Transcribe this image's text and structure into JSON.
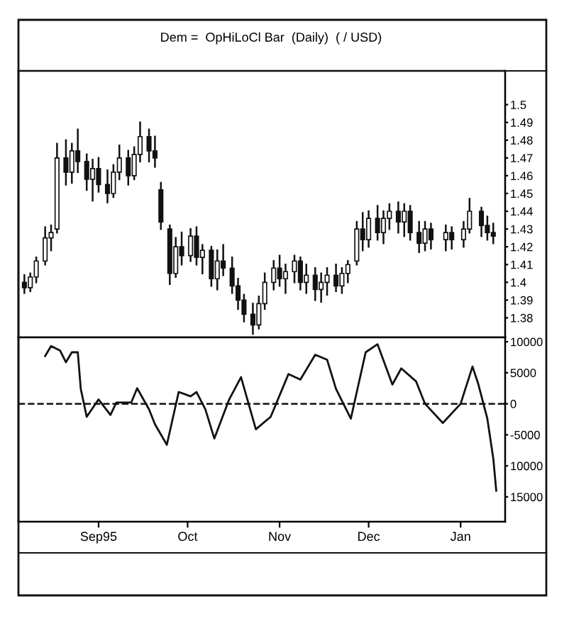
{
  "chart_data": [
    {
      "type": "candlestick",
      "title": "Dem =  OpHiLoCl Bar  (Daily)  ( / USD)",
      "color": "#111111",
      "x": [
        "1995-08-07",
        "1995-08-09",
        "1995-08-11",
        "1995-08-14",
        "1995-08-16",
        "1995-08-18",
        "1995-08-21",
        "1995-08-23",
        "1995-08-25",
        "1995-08-28",
        "1995-08-30",
        "1995-09-01",
        "1995-09-04",
        "1995-09-06",
        "1995-09-08",
        "1995-09-11",
        "1995-09-13",
        "1995-09-15",
        "1995-09-18",
        "1995-09-20",
        "1995-09-22",
        "1995-09-25",
        "1995-09-27",
        "1995-09-29",
        "1995-10-02",
        "1995-10-04",
        "1995-10-06",
        "1995-10-09",
        "1995-10-11",
        "1995-10-13",
        "1995-10-16",
        "1995-10-18",
        "1995-10-20",
        "1995-10-23",
        "1995-10-25",
        "1995-10-27",
        "1995-10-30",
        "1995-11-01",
        "1995-11-03",
        "1995-11-06",
        "1995-11-08",
        "1995-11-10",
        "1995-11-13",
        "1995-11-15",
        "1995-11-17",
        "1995-11-20",
        "1995-11-22",
        "1995-11-24",
        "1995-11-27",
        "1995-11-29",
        "1995-12-01",
        "1995-12-04",
        "1995-12-06",
        "1995-12-08",
        "1995-12-11",
        "1995-12-13",
        "1995-12-15",
        "1995-12-18",
        "1995-12-20",
        "1995-12-22",
        "1995-12-27",
        "1995-12-29",
        "1996-01-02",
        "1996-01-04",
        "1996-01-08",
        "1996-01-10",
        "1996-01-12"
      ],
      "ohlc": [
        [
          1.4,
          1.404,
          1.394,
          1.397
        ],
        [
          1.397,
          1.405,
          1.395,
          1.403
        ],
        [
          1.403,
          1.414,
          1.4,
          1.412
        ],
        [
          1.412,
          1.431,
          1.41,
          1.425
        ],
        [
          1.425,
          1.432,
          1.418,
          1.428
        ],
        [
          1.43,
          1.478,
          1.428,
          1.47
        ],
        [
          1.47,
          1.48,
          1.455,
          1.462
        ],
        [
          1.462,
          1.478,
          1.456,
          1.474
        ],
        [
          1.474,
          1.486,
          1.462,
          1.468
        ],
        [
          1.468,
          1.472,
          1.452,
          1.458
        ],
        [
          1.458,
          1.469,
          1.446,
          1.464
        ],
        [
          1.464,
          1.47,
          1.451,
          1.455
        ],
        [
          1.455,
          1.463,
          1.445,
          1.45
        ],
        [
          1.45,
          1.466,
          1.448,
          1.462
        ],
        [
          1.462,
          1.477,
          1.458,
          1.47
        ],
        [
          1.47,
          1.474,
          1.455,
          1.46
        ],
        [
          1.46,
          1.476,
          1.458,
          1.472
        ],
        [
          1.472,
          1.49,
          1.468,
          1.482
        ],
        [
          1.482,
          1.486,
          1.468,
          1.474
        ],
        [
          1.474,
          1.482,
          1.465,
          1.47
        ],
        [
          1.452,
          1.456,
          1.43,
          1.434
        ],
        [
          1.43,
          1.432,
          1.399,
          1.405
        ],
        [
          1.405,
          1.425,
          1.403,
          1.42
        ],
        [
          1.42,
          1.428,
          1.41,
          1.415
        ],
        [
          1.415,
          1.43,
          1.412,
          1.426
        ],
        [
          1.426,
          1.431,
          1.41,
          1.414
        ],
        [
          1.414,
          1.421,
          1.405,
          1.418
        ],
        [
          1.418,
          1.42,
          1.398,
          1.402
        ],
        [
          1.402,
          1.418,
          1.396,
          1.412
        ],
        [
          1.412,
          1.421,
          1.404,
          1.408
        ],
        [
          1.408,
          1.414,
          1.394,
          1.398
        ],
        [
          1.398,
          1.402,
          1.385,
          1.39
        ],
        [
          1.39,
          1.393,
          1.378,
          1.382
        ],
        [
          1.382,
          1.388,
          1.371,
          1.376
        ],
        [
          1.376,
          1.392,
          1.374,
          1.388
        ],
        [
          1.388,
          1.405,
          1.385,
          1.4
        ],
        [
          1.4,
          1.412,
          1.396,
          1.408
        ],
        [
          1.408,
          1.415,
          1.398,
          1.402
        ],
        [
          1.402,
          1.41,
          1.394,
          1.406
        ],
        [
          1.406,
          1.415,
          1.4,
          1.412
        ],
        [
          1.412,
          1.414,
          1.396,
          1.4
        ],
        [
          1.4,
          1.41,
          1.394,
          1.404
        ],
        [
          1.404,
          1.408,
          1.39,
          1.396
        ],
        [
          1.396,
          1.405,
          1.389,
          1.4
        ],
        [
          1.4,
          1.408,
          1.393,
          1.404
        ],
        [
          1.404,
          1.41,
          1.395,
          1.398
        ],
        [
          1.398,
          1.408,
          1.394,
          1.405
        ],
        [
          1.405,
          1.412,
          1.4,
          1.41
        ],
        [
          1.412,
          1.434,
          1.41,
          1.43
        ],
        [
          1.43,
          1.439,
          1.418,
          1.424
        ],
        [
          1.424,
          1.44,
          1.42,
          1.436
        ],
        [
          1.436,
          1.443,
          1.424,
          1.428
        ],
        [
          1.428,
          1.44,
          1.422,
          1.436
        ],
        [
          1.436,
          1.444,
          1.43,
          1.44
        ],
        [
          1.44,
          1.445,
          1.428,
          1.434
        ],
        [
          1.434,
          1.444,
          1.426,
          1.44
        ],
        [
          1.44,
          1.443,
          1.424,
          1.428
        ],
        [
          1.428,
          1.434,
          1.417,
          1.422
        ],
        [
          1.422,
          1.434,
          1.418,
          1.43
        ],
        [
          1.43,
          1.433,
          1.419,
          1.424
        ],
        [
          1.424,
          1.432,
          1.418,
          1.428
        ],
        [
          1.428,
          1.431,
          1.419,
          1.424
        ],
        [
          1.424,
          1.434,
          1.42,
          1.43
        ],
        [
          1.43,
          1.447,
          1.428,
          1.44
        ],
        [
          1.44,
          1.442,
          1.426,
          1.432
        ],
        [
          1.432,
          1.437,
          1.424,
          1.428
        ],
        [
          1.428,
          1.433,
          1.422,
          1.426
        ]
      ],
      "xlim": [
        "1995-08-05",
        "1996-01-16"
      ],
      "ylim": [
        1.369,
        1.519
      ],
      "yticks": [
        1.38,
        1.39,
        1.4,
        1.41,
        1.42,
        1.43,
        1.44,
        1.45,
        1.46,
        1.47,
        1.48,
        1.49,
        1.5
      ],
      "tick_labels": "y",
      "grid": false,
      "legend": false
    },
    {
      "type": "line",
      "series": [
        {
          "color": "#111111",
          "x": [
            "1995-08-14",
            "1995-08-16",
            "1995-08-19",
            "1995-08-21",
            "1995-08-23",
            "1995-08-25",
            "1995-08-26",
            "1995-08-28",
            "1995-09-01",
            "1995-09-05",
            "1995-09-07",
            "1995-09-12",
            "1995-09-14",
            "1995-09-18",
            "1995-09-20",
            "1995-09-24",
            "1995-09-28",
            "1995-10-02",
            "1995-10-04",
            "1995-10-07",
            "1995-10-10",
            "1995-10-15",
            "1995-10-19",
            "1995-10-24",
            "1995-10-29",
            "1995-11-04",
            "1995-11-08",
            "1995-11-13",
            "1995-11-17",
            "1995-11-20",
            "1995-11-25",
            "1995-11-30",
            "1995-12-04",
            "1995-12-09",
            "1995-12-12",
            "1995-12-17",
            "1995-12-20",
            "1995-12-26",
            "1996-01-01",
            "1996-01-05",
            "1996-01-07",
            "1996-01-10",
            "1996-01-12",
            "1996-01-13"
          ],
          "values": [
            7700,
            9300,
            8600,
            6700,
            8300,
            8300,
            2400,
            -2100,
            700,
            -1800,
            200,
            200,
            2500,
            -900,
            -3300,
            -6600,
            1900,
            1200,
            1900,
            -900,
            -5600,
            700,
            4300,
            -4100,
            -2100,
            4800,
            3900,
            7900,
            7100,
            2400,
            -2400,
            8300,
            9600,
            3100,
            5700,
            3600,
            0,
            -3100,
            0,
            6000,
            3100,
            -2400,
            -8800,
            -14000
          ]
        }
      ],
      "xlim": [
        "1995-08-05",
        "1996-01-16"
      ],
      "ylim": [
        -19000,
        10700
      ],
      "yticks": [
        {
          "value": 10000,
          "label": "10000"
        },
        5000,
        0,
        -5000,
        {
          "value": -10000,
          "label": "10000"
        },
        {
          "value": -15000,
          "label": "15000"
        }
      ],
      "xticks": [
        {
          "value": "1995-09-01",
          "label": "Sep95"
        },
        {
          "value": "1995-10-01",
          "label": "Oct"
        },
        {
          "value": "1995-11-01",
          "label": "Nov"
        },
        {
          "value": "1995-12-01",
          "label": "Dec"
        },
        {
          "value": "1996-01-01",
          "label": "Jan"
        }
      ],
      "ref_lines": [
        {
          "axis": "y",
          "value": 0,
          "line_style": "dashed",
          "color": "#111111"
        }
      ],
      "grid": false,
      "legend": false,
      "marker": "none",
      "line_style": "solid"
    }
  ]
}
